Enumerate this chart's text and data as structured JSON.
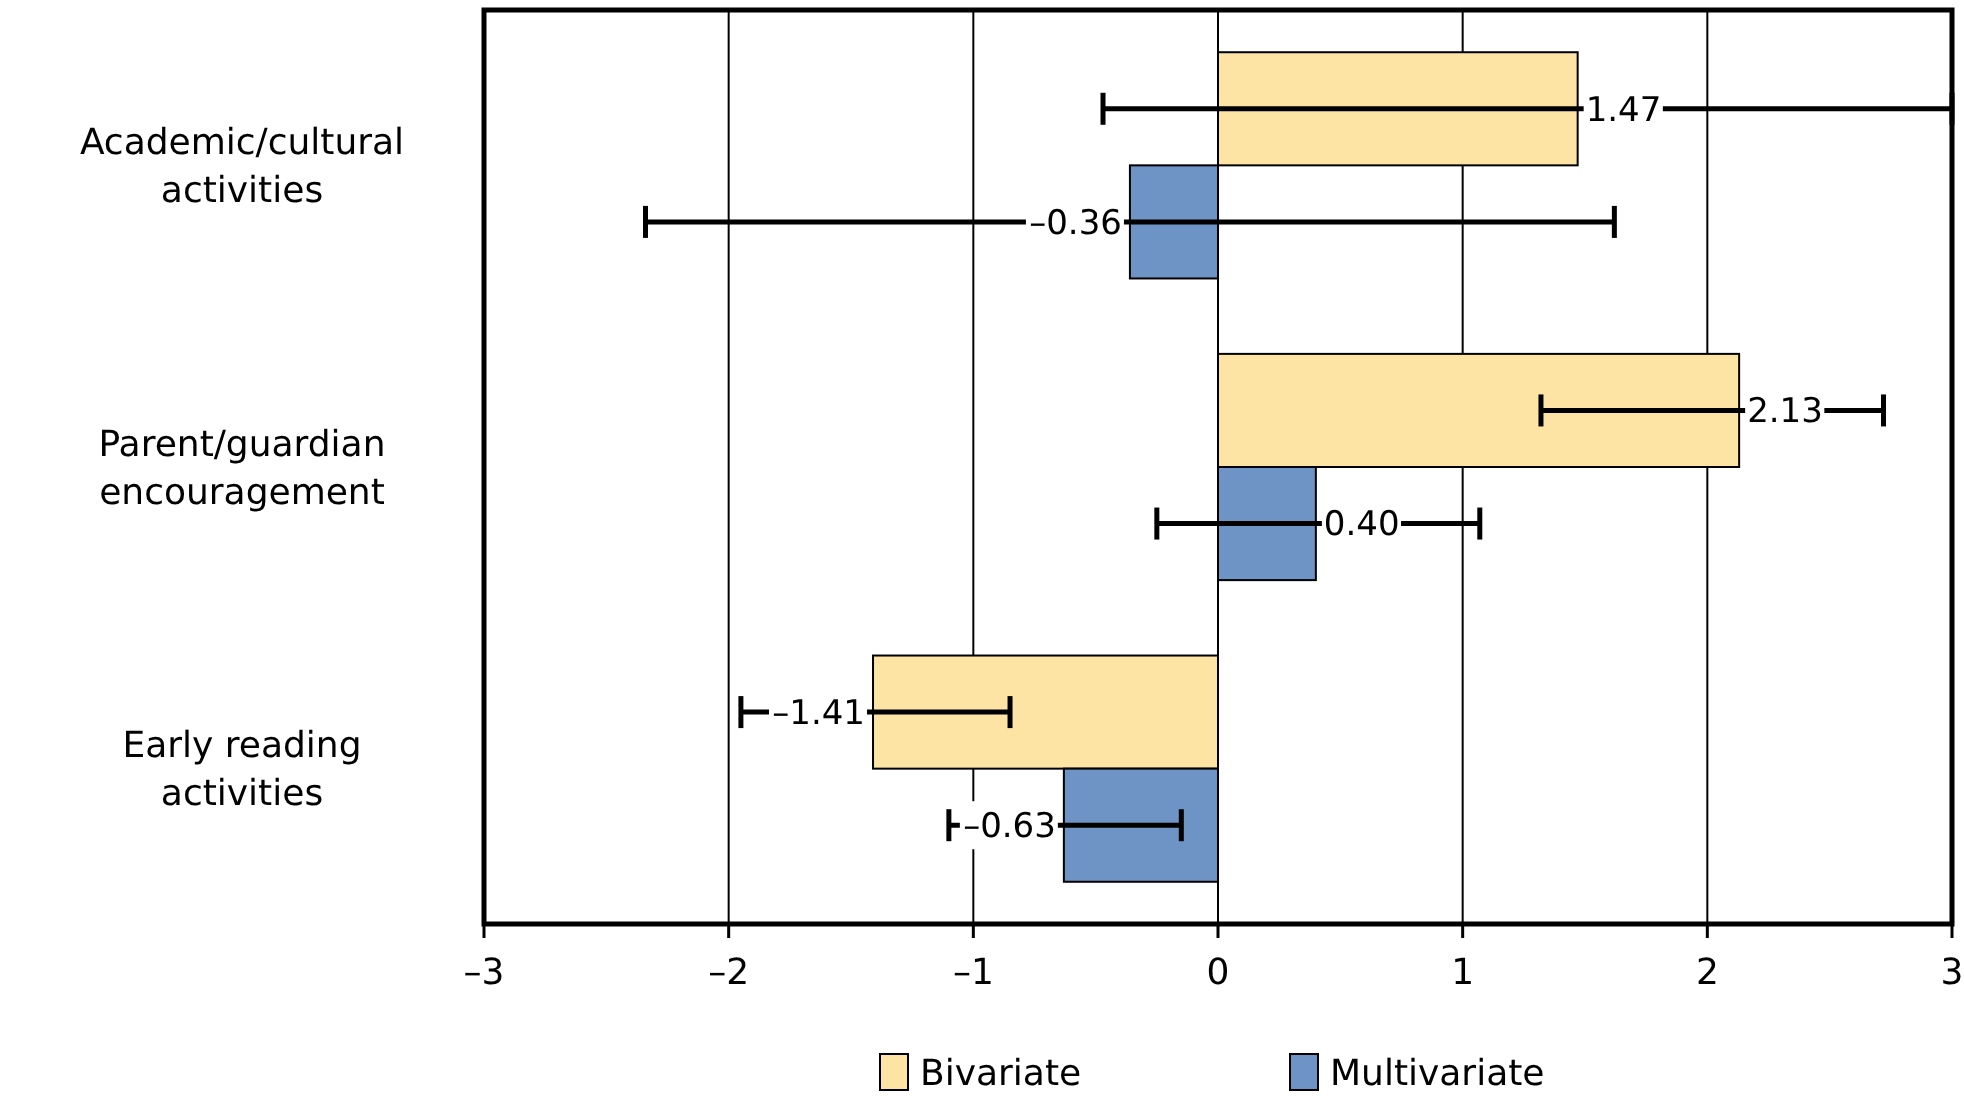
{
  "chart_data": {
    "type": "bar",
    "orientation": "horizontal",
    "categories": [
      "Academic/cultural activities",
      "Parent/guardian encouragement",
      "Early reading activities"
    ],
    "series": [
      {
        "name": "Bivariate",
        "color": "#fde4a5",
        "values": [
          1.47,
          2.13,
          -1.41
        ],
        "errors": [
          [
            -0.47,
            3.0
          ],
          [
            1.32,
            2.72
          ],
          [
            -1.95,
            -0.85
          ]
        ],
        "value_labels": [
          "1.47",
          "2.13",
          "–1.41"
        ]
      },
      {
        "name": "Multivariate",
        "color": "#6e93c5",
        "values": [
          -0.36,
          0.4,
          -0.63
        ],
        "errors": [
          [
            -2.34,
            1.62
          ],
          [
            -0.25,
            1.07
          ],
          [
            -1.1,
            -0.15
          ]
        ],
        "value_labels": [
          "–0.36",
          "0.40",
          "–0.63"
        ]
      }
    ],
    "xlim": [
      -3,
      3
    ],
    "xticks": [
      {
        "value": -3,
        "label": "–3"
      },
      {
        "value": -2,
        "label": "–2"
      },
      {
        "value": -1,
        "label": "–1"
      },
      0,
      1,
      2,
      3
    ],
    "grid": "x",
    "legend": "bottom"
  }
}
